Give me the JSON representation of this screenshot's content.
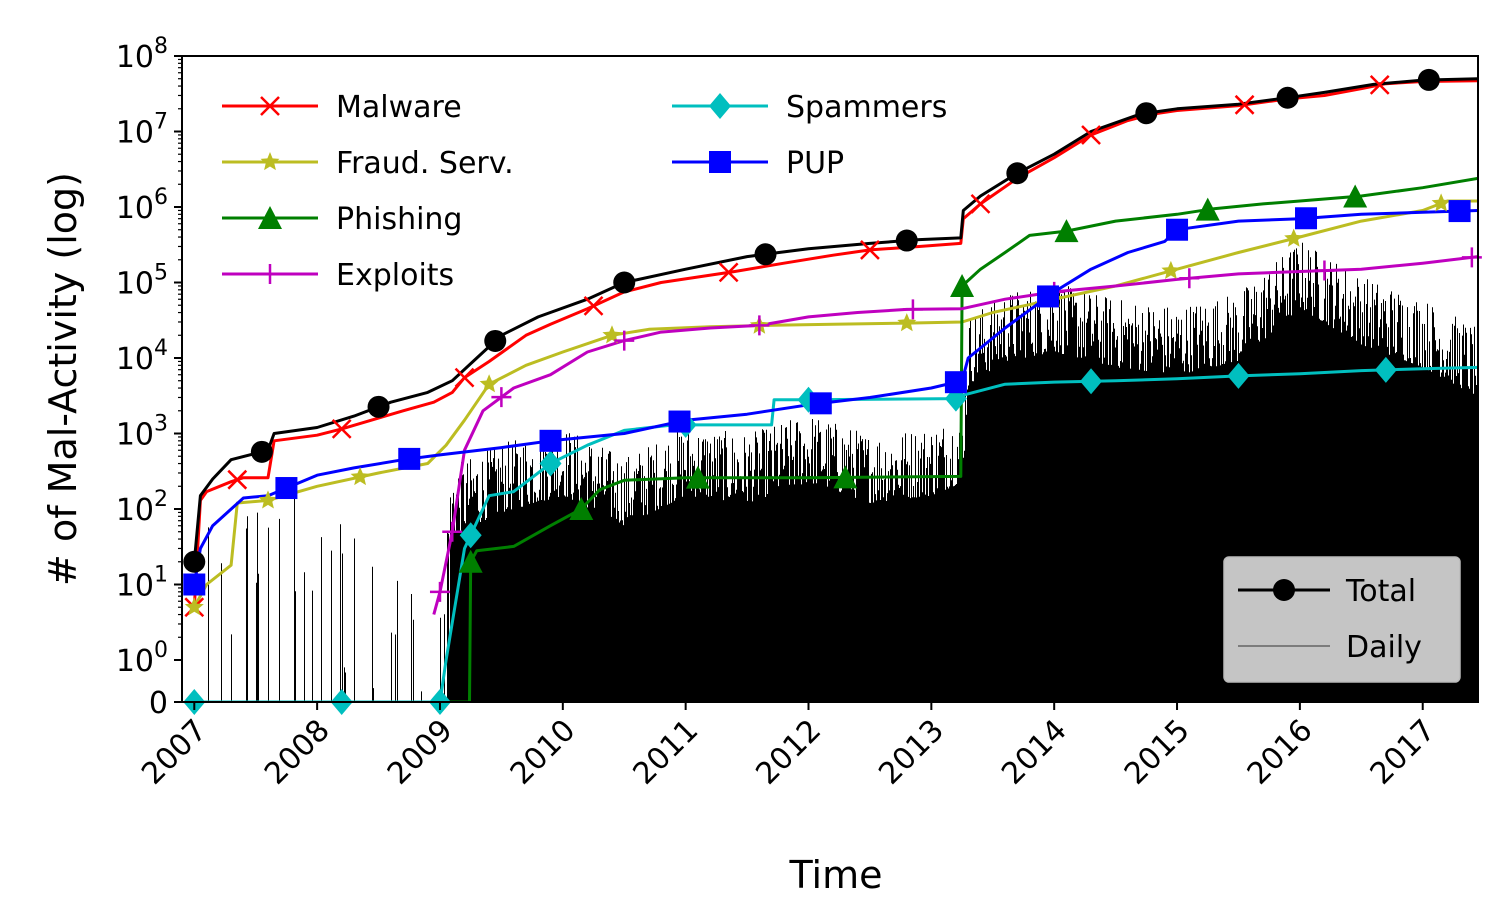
{
  "chart_data": {
    "type": "line",
    "xlabel": "Time",
    "ylabel": "# of Mal-Activity (log)",
    "y_scale": "symlog",
    "ylim": [
      0,
      100000000
    ],
    "xlim": [
      2006.9,
      2017.45
    ],
    "x_ticks": [
      "2007",
      "2008",
      "2009",
      "2010",
      "2011",
      "2012",
      "2013",
      "2014",
      "2015",
      "2016",
      "2017"
    ],
    "y_ticks": [
      {
        "value": 0,
        "label": "0"
      },
      {
        "value": 1,
        "base": "10",
        "exp": "0"
      },
      {
        "value": 10,
        "base": "10",
        "exp": "1"
      },
      {
        "value": 100,
        "base": "10",
        "exp": "2"
      },
      {
        "value": 1000,
        "base": "10",
        "exp": "3"
      },
      {
        "value": 10000,
        "base": "10",
        "exp": "4"
      },
      {
        "value": 100000,
        "base": "10",
        "exp": "5"
      },
      {
        "value": 1000000,
        "base": "10",
        "exp": "6"
      },
      {
        "value": 10000000,
        "base": "10",
        "exp": "7"
      },
      {
        "value": 100000000,
        "base": "10",
        "exp": "8"
      }
    ],
    "legend_main": {
      "placement": "top-left"
    },
    "legend_secondary": {
      "placement": "bottom-right"
    },
    "series": [
      {
        "name": "Malware",
        "color": "#ff0000",
        "marker": "x",
        "legend_group": "main",
        "points": [
          [
            2007.0,
            5
          ],
          [
            2007.05,
            130
          ],
          [
            2007.1,
            170
          ],
          [
            2007.3,
            230
          ],
          [
            2007.4,
            260
          ],
          [
            2007.6,
            260
          ],
          [
            2007.65,
            800
          ],
          [
            2008.0,
            950
          ],
          [
            2008.2,
            1150
          ],
          [
            2008.5,
            1600
          ],
          [
            2008.7,
            2000
          ],
          [
            2008.95,
            2600
          ],
          [
            2009.1,
            3500
          ],
          [
            2009.2,
            5500
          ],
          [
            2009.4,
            9000
          ],
          [
            2009.7,
            20000
          ],
          [
            2009.9,
            28000
          ],
          [
            2010.2,
            45000
          ],
          [
            2010.5,
            75000
          ],
          [
            2010.8,
            100000
          ],
          [
            2011.4,
            140000
          ],
          [
            2011.8,
            180000
          ],
          [
            2012.2,
            230000
          ],
          [
            2012.5,
            270000
          ],
          [
            2012.9,
            300000
          ],
          [
            2013.24,
            330000
          ],
          [
            2013.26,
            700000
          ],
          [
            2013.4,
            1100000
          ],
          [
            2013.7,
            2400000
          ],
          [
            2014.0,
            4500000
          ],
          [
            2014.3,
            9000000
          ],
          [
            2014.6,
            14000000
          ],
          [
            2014.8,
            17000000
          ],
          [
            2015.0,
            19000000
          ],
          [
            2015.5,
            22000000
          ],
          [
            2015.9,
            27000000
          ],
          [
            2016.2,
            30000000
          ],
          [
            2016.5,
            37000000
          ],
          [
            2016.7,
            43000000
          ],
          [
            2017.0,
            46000000
          ],
          [
            2017.45,
            47000000
          ]
        ],
        "markers_at": [
          2007.0,
          2007.35,
          2008.2,
          2009.2,
          2010.25,
          2011.35,
          2012.5,
          2013.4,
          2014.3,
          2015.55,
          2016.65
        ]
      },
      {
        "name": "Fraud. Serv.",
        "color": "#bcbd22",
        "marker": "*",
        "legend_group": "main",
        "points": [
          [
            2007.0,
            5
          ],
          [
            2007.1,
            10
          ],
          [
            2007.3,
            18
          ],
          [
            2007.35,
            120
          ],
          [
            2007.6,
            130
          ],
          [
            2008.0,
            200
          ],
          [
            2008.5,
            300
          ],
          [
            2008.9,
            400
          ],
          [
            2009.05,
            700
          ],
          [
            2009.2,
            1500
          ],
          [
            2009.4,
            4500
          ],
          [
            2009.7,
            8000
          ],
          [
            2010.0,
            12000
          ],
          [
            2010.4,
            20000
          ],
          [
            2010.7,
            24000
          ],
          [
            2011.2,
            26000
          ],
          [
            2011.65,
            27000
          ],
          [
            2012.2,
            28000
          ],
          [
            2012.8,
            29000
          ],
          [
            2013.25,
            30000
          ],
          [
            2013.5,
            40000
          ],
          [
            2014.0,
            60000
          ],
          [
            2014.5,
            90000
          ],
          [
            2015.0,
            150000
          ],
          [
            2015.5,
            250000
          ],
          [
            2016.0,
            400000
          ],
          [
            2016.5,
            650000
          ],
          [
            2017.0,
            900000
          ],
          [
            2017.2,
            1200000
          ],
          [
            2017.45,
            1200000
          ]
        ],
        "markers_at": [
          2007.0,
          2007.6,
          2008.35,
          2009.4,
          2010.4,
          2011.6,
          2012.8,
          2014.0,
          2014.95,
          2015.95,
          2017.15
        ]
      },
      {
        "name": "Phishing",
        "color": "#007f00",
        "marker": "^",
        "legend_group": "main",
        "points": [
          [
            2007.0,
            0
          ],
          [
            2009.24,
            0
          ],
          [
            2009.25,
            20
          ],
          [
            2009.3,
            28
          ],
          [
            2009.6,
            32
          ],
          [
            2009.9,
            60
          ],
          [
            2010.15,
            100
          ],
          [
            2010.3,
            180
          ],
          [
            2010.5,
            240
          ],
          [
            2011.0,
            260
          ],
          [
            2012.0,
            260
          ],
          [
            2013.24,
            270
          ],
          [
            2013.25,
            90000
          ],
          [
            2013.4,
            150000
          ],
          [
            2013.6,
            250000
          ],
          [
            2013.8,
            420000
          ],
          [
            2014.1,
            480000
          ],
          [
            2014.5,
            650000
          ],
          [
            2015.0,
            800000
          ],
          [
            2015.3,
            950000
          ],
          [
            2015.7,
            1100000
          ],
          [
            2016.0,
            1200000
          ],
          [
            2016.5,
            1400000
          ],
          [
            2017.0,
            1800000
          ],
          [
            2017.45,
            2400000
          ]
        ],
        "markers_at": [
          2009.25,
          2010.15,
          2011.1,
          2012.3,
          2013.25,
          2014.1,
          2015.25,
          2016.45
        ]
      },
      {
        "name": "Exploits",
        "color": "#bf00bf",
        "marker": "+",
        "legend_group": "main",
        "points": [
          [
            2008.95,
            4
          ],
          [
            2009.0,
            8
          ],
          [
            2009.1,
            50
          ],
          [
            2009.2,
            600
          ],
          [
            2009.35,
            2000
          ],
          [
            2009.6,
            4000
          ],
          [
            2009.9,
            6000
          ],
          [
            2010.2,
            12000
          ],
          [
            2010.5,
            17000
          ],
          [
            2010.8,
            22000
          ],
          [
            2011.2,
            25000
          ],
          [
            2011.6,
            27000
          ],
          [
            2012.0,
            35000
          ],
          [
            2012.4,
            40000
          ],
          [
            2012.8,
            44000
          ],
          [
            2013.25,
            45000
          ],
          [
            2013.6,
            60000
          ],
          [
            2014.0,
            75000
          ],
          [
            2014.5,
            90000
          ],
          [
            2015.0,
            110000
          ],
          [
            2015.5,
            130000
          ],
          [
            2016.0,
            140000
          ],
          [
            2016.5,
            150000
          ],
          [
            2017.0,
            180000
          ],
          [
            2017.45,
            220000
          ]
        ],
        "markers_at": [
          2009.0,
          2009.1,
          2009.5,
          2010.5,
          2011.6,
          2012.85,
          2014.0,
          2015.1,
          2016.2,
          2017.4
        ]
      },
      {
        "name": "Spammers",
        "color": "#00bfbf",
        "marker": "D",
        "legend_group": "main",
        "points": [
          [
            2007.0,
            0
          ],
          [
            2009.0,
            0
          ],
          [
            2009.05,
            1
          ],
          [
            2009.2,
            30
          ],
          [
            2009.4,
            150
          ],
          [
            2009.6,
            170
          ],
          [
            2009.9,
            400
          ],
          [
            2010.2,
            700
          ],
          [
            2010.5,
            1100
          ],
          [
            2010.9,
            1300
          ],
          [
            2011.7,
            1300
          ],
          [
            2011.72,
            2800
          ],
          [
            2012.0,
            2800
          ],
          [
            2013.2,
            2900
          ],
          [
            2013.25,
            3200
          ],
          [
            2013.6,
            4500
          ],
          [
            2014.0,
            4800
          ],
          [
            2014.5,
            5000
          ],
          [
            2015.0,
            5300
          ],
          [
            2015.5,
            5800
          ],
          [
            2016.0,
            6200
          ],
          [
            2016.5,
            6800
          ],
          [
            2017.0,
            7200
          ],
          [
            2017.45,
            7500
          ]
        ],
        "markers_at": [
          2007.0,
          2008.2,
          2009.0,
          2009.25,
          2009.9,
          2011.0,
          2012.0,
          2013.2,
          2014.3,
          2015.5,
          2016.7
        ]
      },
      {
        "name": "PUP",
        "color": "#0000ff",
        "marker": "s",
        "legend_group": "main",
        "points": [
          [
            2007.0,
            10
          ],
          [
            2007.05,
            30
          ],
          [
            2007.15,
            60
          ],
          [
            2007.4,
            140
          ],
          [
            2007.6,
            150
          ],
          [
            2008.0,
            280
          ],
          [
            2008.3,
            350
          ],
          [
            2008.7,
            450
          ],
          [
            2009.0,
            520
          ],
          [
            2009.5,
            650
          ],
          [
            2009.9,
            800
          ],
          [
            2010.5,
            1000
          ],
          [
            2011.0,
            1500
          ],
          [
            2011.5,
            1800
          ],
          [
            2012.0,
            2400
          ],
          [
            2012.5,
            3000
          ],
          [
            2013.0,
            4000
          ],
          [
            2013.25,
            5000
          ],
          [
            2013.3,
            10000
          ],
          [
            2013.6,
            25000
          ],
          [
            2014.0,
            75000
          ],
          [
            2014.3,
            150000
          ],
          [
            2014.6,
            250000
          ],
          [
            2014.9,
            350000
          ],
          [
            2015.0,
            500000
          ],
          [
            2015.5,
            650000
          ],
          [
            2016.0,
            700000
          ],
          [
            2016.5,
            800000
          ],
          [
            2017.0,
            850000
          ],
          [
            2017.45,
            900000
          ]
        ],
        "markers_at": [
          2007.0,
          2007.75,
          2008.75,
          2009.9,
          2010.95,
          2012.1,
          2013.2,
          2013.95,
          2015.0,
          2016.05,
          2017.3
        ]
      },
      {
        "name": "Total",
        "color": "#000000",
        "marker": "o",
        "legend_group": "secondary",
        "points": [
          [
            2007.0,
            20
          ],
          [
            2007.05,
            150
          ],
          [
            2007.15,
            250
          ],
          [
            2007.3,
            450
          ],
          [
            2007.6,
            600
          ],
          [
            2007.65,
            1000
          ],
          [
            2008.0,
            1200
          ],
          [
            2008.3,
            1700
          ],
          [
            2008.6,
            2600
          ],
          [
            2008.9,
            3500
          ],
          [
            2009.1,
            5000
          ],
          [
            2009.3,
            10000
          ],
          [
            2009.5,
            20000
          ],
          [
            2009.8,
            35000
          ],
          [
            2010.2,
            60000
          ],
          [
            2010.5,
            100000
          ],
          [
            2011.0,
            150000
          ],
          [
            2011.5,
            220000
          ],
          [
            2012.0,
            280000
          ],
          [
            2012.5,
            330000
          ],
          [
            2012.9,
            370000
          ],
          [
            2013.24,
            390000
          ],
          [
            2013.26,
            900000
          ],
          [
            2013.4,
            1400000
          ],
          [
            2013.7,
            2800000
          ],
          [
            2014.0,
            5000000
          ],
          [
            2014.3,
            10000000
          ],
          [
            2014.7,
            17000000
          ],
          [
            2015.0,
            20000000
          ],
          [
            2015.5,
            23000000
          ],
          [
            2015.9,
            28000000
          ],
          [
            2016.2,
            33000000
          ],
          [
            2016.6,
            42000000
          ],
          [
            2017.0,
            48000000
          ],
          [
            2017.45,
            50000000
          ]
        ],
        "markers_at": [
          2007.0,
          2007.55,
          2008.5,
          2009.45,
          2010.5,
          2011.65,
          2012.8,
          2013.7,
          2014.75,
          2015.9,
          2017.05
        ]
      },
      {
        "name": "Daily",
        "color": "#000000",
        "marker": "none",
        "legend_group": "secondary",
        "style": "daily-bars",
        "envelope": [
          [
            2007.0,
            50
          ],
          [
            2007.5,
            200
          ],
          [
            2008.0,
            150
          ],
          [
            2008.9,
            5
          ],
          [
            2009.1,
            300
          ],
          [
            2009.5,
            600
          ],
          [
            2010.0,
            1000
          ],
          [
            2010.5,
            400
          ],
          [
            2011.0,
            1000
          ],
          [
            2011.5,
            800
          ],
          [
            2012.0,
            1500
          ],
          [
            2012.5,
            800
          ],
          [
            2013.0,
            1000
          ],
          [
            2013.25,
            1500
          ],
          [
            2013.3,
            30000
          ],
          [
            2013.6,
            60000
          ],
          [
            2014.0,
            80000
          ],
          [
            2014.5,
            50000
          ],
          [
            2015.0,
            40000
          ],
          [
            2015.5,
            60000
          ],
          [
            2016.0,
            300000
          ],
          [
            2016.5,
            100000
          ],
          [
            2017.0,
            50000
          ],
          [
            2017.45,
            20000
          ]
        ]
      }
    ]
  }
}
